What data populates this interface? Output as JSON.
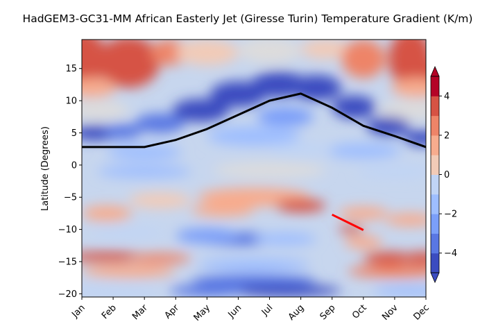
{
  "chart_data": {
    "type": "contour",
    "title": "HadGEM3-GC31-MM African Easterly Jet (Giresse Turin) Temperature Gradient (K/m)",
    "xlabel": "",
    "ylabel": "Latitude (Degrees)",
    "x_categories": [
      "Jan",
      "Feb",
      "Mar",
      "Apr",
      "May",
      "Jun",
      "Jul",
      "Aug",
      "Sep",
      "Oct",
      "Nov",
      "Dec"
    ],
    "xlim": [
      0,
      11
    ],
    "ylim": [
      -20.5,
      19.5
    ],
    "y_ticks": [
      15,
      10,
      5,
      0,
      -5,
      -10,
      -15,
      -20
    ],
    "y_tick_labels": [
      "15",
      "10",
      "5",
      "0",
      "−5",
      "−10",
      "−15",
      "−20"
    ],
    "colorbar": {
      "ticks": [
        4,
        2,
        0,
        -2,
        -4
      ],
      "tick_labels": [
        "4",
        "2",
        "0",
        "−2",
        "−4"
      ],
      "range": [
        -5,
        5
      ],
      "extend": "both",
      "colormap": "coolwarm",
      "n_levels": 10
    },
    "series": [
      {
        "color": "#000000",
        "months": [
          0,
          1,
          2,
          3,
          4,
          5,
          6,
          7,
          8,
          9,
          10,
          11
        ],
        "latitude": [
          2.8,
          2.8,
          2.8,
          3.9,
          5.6,
          7.8,
          10.0,
          11.1,
          8.9,
          6.1,
          4.5,
          2.8
        ]
      },
      {
        "color": "#ff0000",
        "months": [
          8,
          9
        ],
        "latitude": [
          -7.7,
          -10.1
        ]
      }
    ],
    "grid": false
  }
}
